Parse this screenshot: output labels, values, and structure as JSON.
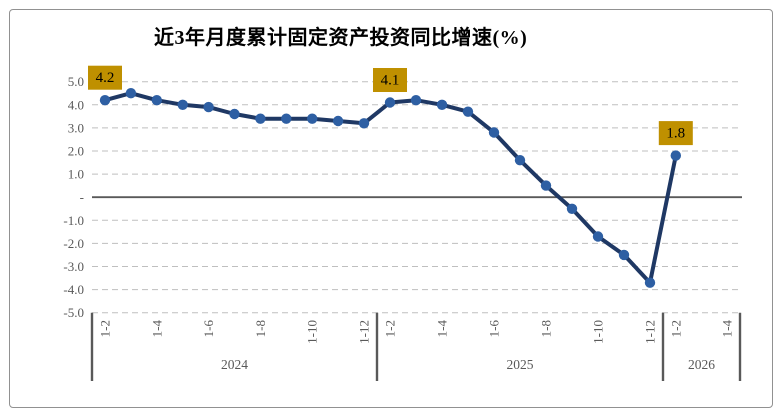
{
  "chart_data": {
    "type": "line",
    "title": "近3年月度累计固定资产投资同比增速(%)",
    "xlabel": "",
    "ylabel": "",
    "ylim": [
      -5.0,
      5.0
    ],
    "grid": "horizontal dashed gridlines at every 1.0, solid dark line at 0",
    "legend": "none",
    "ytick_labels": [
      "5.0",
      "4.0",
      "3.0",
      "2.0",
      "1.0",
      "-",
      "-1.0",
      "-2.0",
      "-3.0",
      "-4.0",
      "-5.0"
    ],
    "tick_every": 2,
    "groups": [
      {
        "year": "2024",
        "months": [
          "1-2",
          "1-3",
          "1-4",
          "1-5",
          "1-6",
          "1-7",
          "1-8",
          "1-9",
          "1-10",
          "1-11",
          "1-12"
        ],
        "values": [
          4.2,
          4.5,
          4.2,
          4.0,
          3.9,
          3.6,
          3.4,
          3.4,
          3.4,
          3.3,
          3.2
        ]
      },
      {
        "year": "2025",
        "months": [
          "1-2",
          "1-3",
          "1-4",
          "1-5",
          "1-6",
          "1-7",
          "1-8",
          "1-9",
          "1-10",
          "1-11",
          "1-12"
        ],
        "values": [
          4.1,
          4.2,
          4.0,
          3.7,
          2.8,
          1.6,
          0.5,
          -0.5,
          -1.7,
          -2.5,
          -3.7
        ]
      },
      {
        "year": "2026",
        "months": [
          "1-2",
          "1-3",
          "1-4"
        ],
        "values": [
          1.8
        ]
      }
    ],
    "data_labels": [
      {
        "text": "4.2",
        "group": 0,
        "index": 0
      },
      {
        "text": "4.1",
        "group": 1,
        "index": 0
      },
      {
        "text": "1.8",
        "group": 2,
        "index": 0
      }
    ],
    "colors": {
      "line": "#1F3864",
      "marker": "#2E5FA3",
      "label_bg": "#BF9000",
      "label_text": "#000000",
      "grid": "#BFBFBF",
      "zero_axis": "#595959",
      "separator": "#595959",
      "tick_text": "#595959",
      "title_text": "#000000",
      "frame_border": "#919191"
    }
  }
}
